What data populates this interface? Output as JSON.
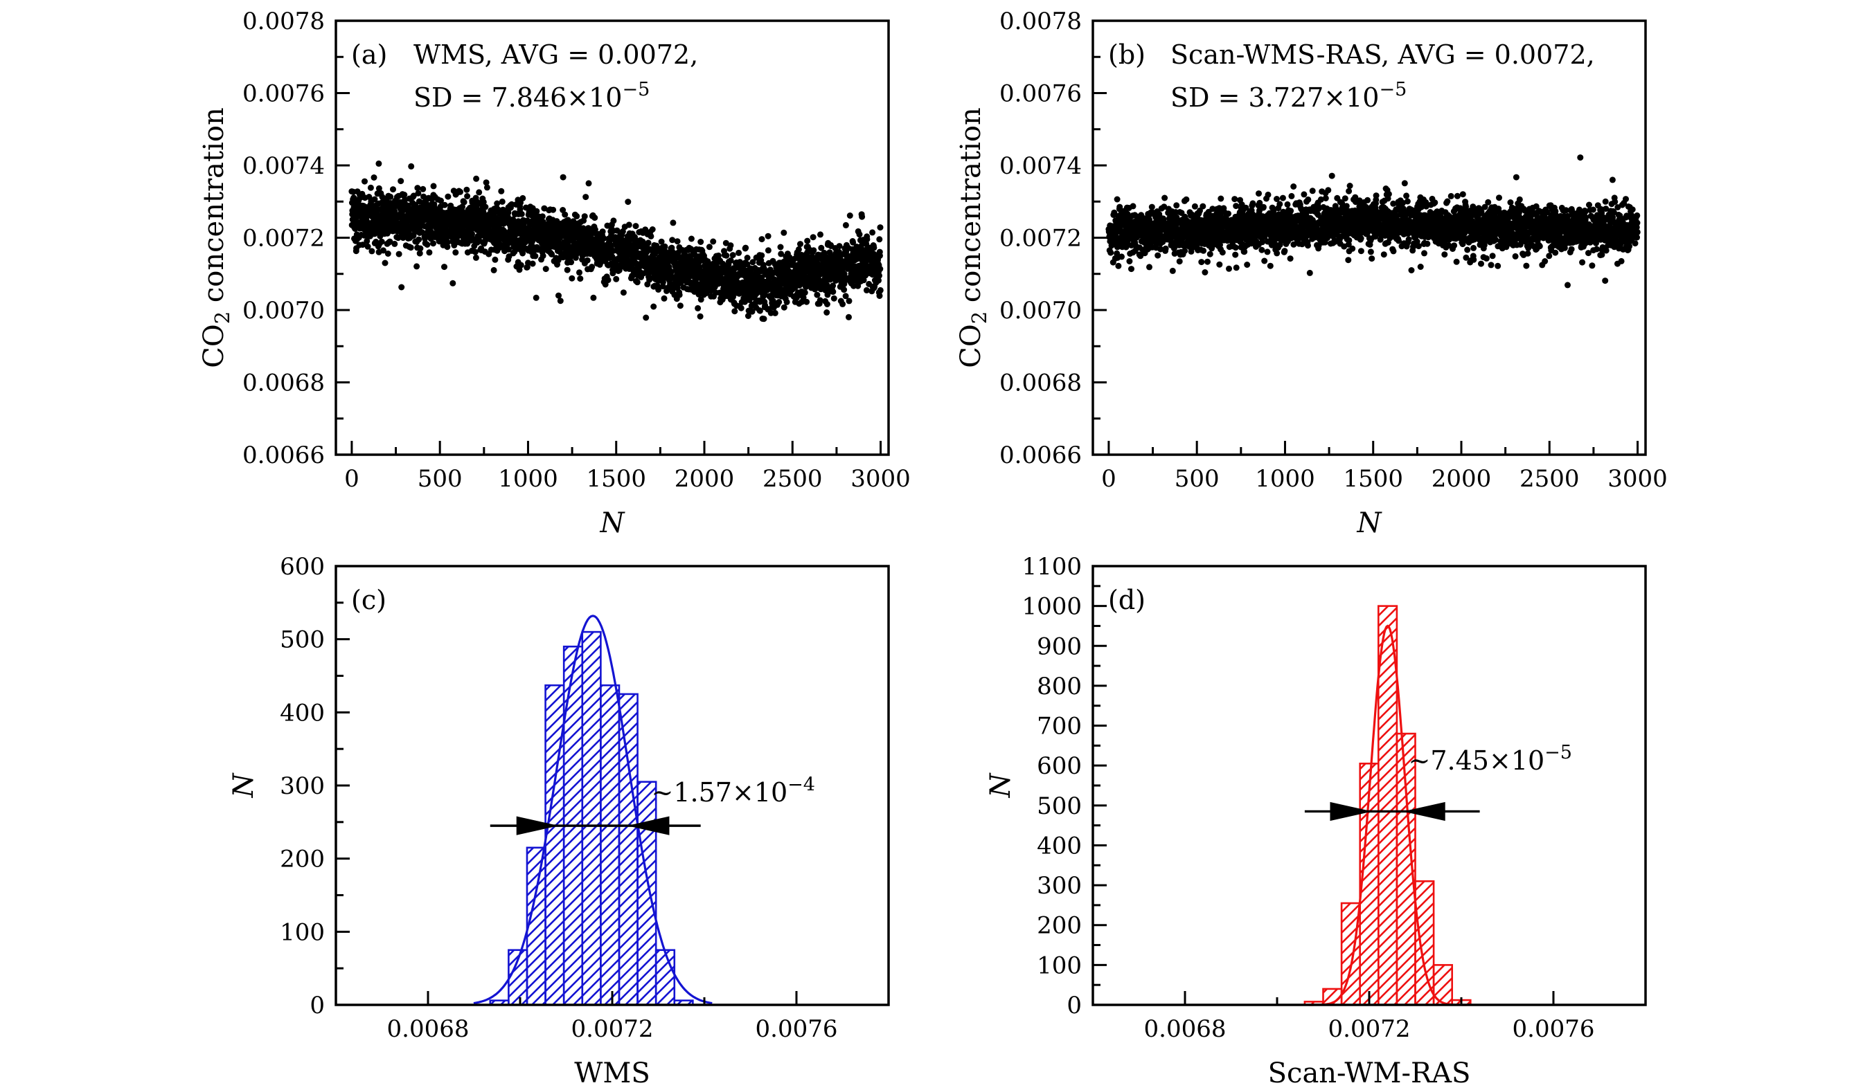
{
  "figure": {
    "background": "#ffffff",
    "axis_color": "#000000",
    "scatter_color": "#000000",
    "blue": "#1414d2",
    "red": "#ee1111"
  },
  "chart_data": [
    {
      "id": "a",
      "type": "scatter",
      "panel_label": "(a)",
      "header_line1": [
        {
          "t": "WMS,  AVG = 0.0072,"
        }
      ],
      "header_line2": [
        {
          "t": "SD = 7.846×10"
        },
        {
          "t": "−5",
          "s": "sup"
        }
      ],
      "xlabel": [
        {
          "t": "N",
          "i": true
        }
      ],
      "ylabel": [
        {
          "t": "CO"
        },
        {
          "t": "2",
          "s": "sub"
        },
        {
          "t": " concentration"
        }
      ],
      "xlim": [
        -90,
        3045
      ],
      "ylim": [
        0.0066,
        0.0078
      ],
      "x_ticks": [
        0,
        500,
        1000,
        1500,
        2000,
        2500,
        3000
      ],
      "x_tick_labels": [
        "0",
        "500",
        "1000",
        "1500",
        "2000",
        "2500",
        "3000"
      ],
      "x_minor": [
        250,
        750,
        1250,
        1750,
        2250,
        2750
      ],
      "y_ticks": [
        0.0066,
        0.0068,
        0.007,
        0.0072,
        0.0074,
        0.0076,
        0.0078
      ],
      "y_tick_labels": [
        "0.0066",
        "0.0068",
        "0.0070",
        "0.0072",
        "0.0074",
        "0.0076",
        "0.0078"
      ],
      "y_minor": [
        0.0067,
        0.0069,
        0.0071,
        0.0073,
        0.0075,
        0.0077
      ],
      "n_points": 3000,
      "seed": 20240611,
      "trend": [
        [
          0,
          0.00726
        ],
        [
          200,
          0.00725
        ],
        [
          400,
          0.00725
        ],
        [
          600,
          0.00724
        ],
        [
          800,
          0.00723
        ],
        [
          1000,
          0.00721
        ],
        [
          1200,
          0.0072
        ],
        [
          1400,
          0.00718
        ],
        [
          1600,
          0.00715
        ],
        [
          1800,
          0.00712
        ],
        [
          2000,
          0.0071
        ],
        [
          2200,
          0.00708
        ],
        [
          2300,
          0.00707
        ],
        [
          2400,
          0.00708
        ],
        [
          2600,
          0.0071
        ],
        [
          2800,
          0.00712
        ],
        [
          3000,
          0.00713
        ]
      ],
      "noise_sigma": 3.4e-05,
      "outlier_sigma": 6.8e-05,
      "outlier_frac": 0.1,
      "avg": "0.0072",
      "sd": "7.846e-5"
    },
    {
      "id": "b",
      "type": "scatter",
      "panel_label": "(b)",
      "header_line1": [
        {
          "t": "Scan-WMS-RAS,  AVG = 0.0072,"
        }
      ],
      "header_line2": [
        {
          "t": "SD = 3.727×10"
        },
        {
          "t": "−5",
          "s": "sup"
        }
      ],
      "xlabel": [
        {
          "t": "N",
          "i": true
        }
      ],
      "ylabel": [
        {
          "t": "CO"
        },
        {
          "t": "2",
          "s": "sub"
        },
        {
          "t": " concentration"
        }
      ],
      "xlim": [
        -90,
        3045
      ],
      "ylim": [
        0.0066,
        0.0078
      ],
      "x_ticks": [
        0,
        500,
        1000,
        1500,
        2000,
        2500,
        3000
      ],
      "x_tick_labels": [
        "0",
        "500",
        "1000",
        "1500",
        "2000",
        "2500",
        "3000"
      ],
      "x_minor": [
        250,
        750,
        1250,
        1750,
        2250,
        2750
      ],
      "y_ticks": [
        0.0066,
        0.0068,
        0.007,
        0.0072,
        0.0074,
        0.0076,
        0.0078
      ],
      "y_tick_labels": [
        "0.0066",
        "0.0068",
        "0.0070",
        "0.0072",
        "0.0074",
        "0.0076",
        "0.0078"
      ],
      "y_minor": [
        0.0067,
        0.0069,
        0.0071,
        0.0073,
        0.0075,
        0.0077
      ],
      "n_points": 3000,
      "seed": 77031559,
      "trend": [
        [
          0,
          0.00722
        ],
        [
          300,
          0.00722
        ],
        [
          600,
          0.00722
        ],
        [
          900,
          0.00723
        ],
        [
          1200,
          0.00724
        ],
        [
          1500,
          0.00724
        ],
        [
          1800,
          0.00724
        ],
        [
          2100,
          0.00723
        ],
        [
          2400,
          0.00723
        ],
        [
          2700,
          0.00722
        ],
        [
          3000,
          0.00722
        ]
      ],
      "noise_sigma": 3e-05,
      "outlier_sigma": 5.8e-05,
      "outlier_frac": 0.1,
      "avg": "0.0072",
      "sd": "3.727e-5"
    },
    {
      "id": "c",
      "type": "histogram",
      "panel_label": "(c)",
      "xlabel": [
        {
          "t": "WMS"
        }
      ],
      "ylabel": [
        {
          "t": "N",
          "i": true
        }
      ],
      "xlim": [
        0.0066,
        0.0078
      ],
      "ylim": [
        0,
        600
      ],
      "x_ticks": [
        0.0068,
        0.0072,
        0.0076
      ],
      "x_tick_labels": [
        "0.0068",
        "0.0072",
        "0.0076"
      ],
      "x_minor": [
        0.007,
        0.0074
      ],
      "y_ticks": [
        0,
        100,
        200,
        300,
        400,
        500,
        600
      ],
      "y_tick_labels": [
        "0",
        "100",
        "200",
        "300",
        "400",
        "500",
        "600"
      ],
      "y_minor": [
        50,
        150,
        250,
        350,
        450,
        550
      ],
      "bin_start": 0.006935,
      "bin_width": 4e-05,
      "counts": [
        6,
        75,
        215,
        437,
        490,
        510,
        437,
        425,
        305,
        75,
        6
      ],
      "fit": {
        "amplitude": 532,
        "mu": 0.007158,
        "sigma": 7.846e-05,
        "span_sigmas": 3.3
      },
      "arrow": {
        "y": 245,
        "x1": 0.006935,
        "x2": 0.007392,
        "tip_left": 0.00708,
        "tip_right": 0.007236
      },
      "annotation": {
        "parts": [
          {
            "t": "~1.57×10"
          },
          {
            "t": "−4",
            "s": "sup"
          }
        ],
        "x": 0.007285,
        "y": 278
      },
      "color": "#1414d2"
    },
    {
      "id": "d",
      "type": "histogram",
      "panel_label": "(d)",
      "xlabel": [
        {
          "t": "Scan-WM-RAS"
        }
      ],
      "ylabel": [
        {
          "t": "N",
          "i": true
        }
      ],
      "xlim": [
        0.0066,
        0.0078
      ],
      "ylim": [
        0,
        1100
      ],
      "x_ticks": [
        0.0068,
        0.0072,
        0.0076
      ],
      "x_tick_labels": [
        "0.0068",
        "0.0072",
        "0.0076"
      ],
      "x_minor": [
        0.007,
        0.0074
      ],
      "y_ticks": [
        0,
        100,
        200,
        300,
        400,
        500,
        600,
        700,
        800,
        900,
        1000,
        1100
      ],
      "y_tick_labels": [
        "0",
        "100",
        "200",
        "300",
        "400",
        "500",
        "600",
        "700",
        "800",
        "900",
        "1000",
        "1100"
      ],
      "y_minor": [
        50,
        150,
        250,
        350,
        450,
        550,
        650,
        750,
        850,
        950,
        1050
      ],
      "bin_start": 0.00706,
      "bin_width": 4e-05,
      "counts": [
        8,
        40,
        255,
        605,
        1000,
        680,
        310,
        100,
        12
      ],
      "fit": {
        "amplitude": 950,
        "mu": 0.00724,
        "sigma": 3.727e-05,
        "span_sigmas": 4.6
      },
      "arrow": {
        "y": 485,
        "x1": 0.00706,
        "x2": 0.00744,
        "tip_left": 0.007203,
        "tip_right": 0.007277
      },
      "annotation": {
        "parts": [
          {
            "t": "~7.45×10"
          },
          {
            "t": "−5",
            "s": "sup"
          }
        ],
        "x": 0.007285,
        "y": 590
      },
      "color": "#ee1111"
    }
  ]
}
